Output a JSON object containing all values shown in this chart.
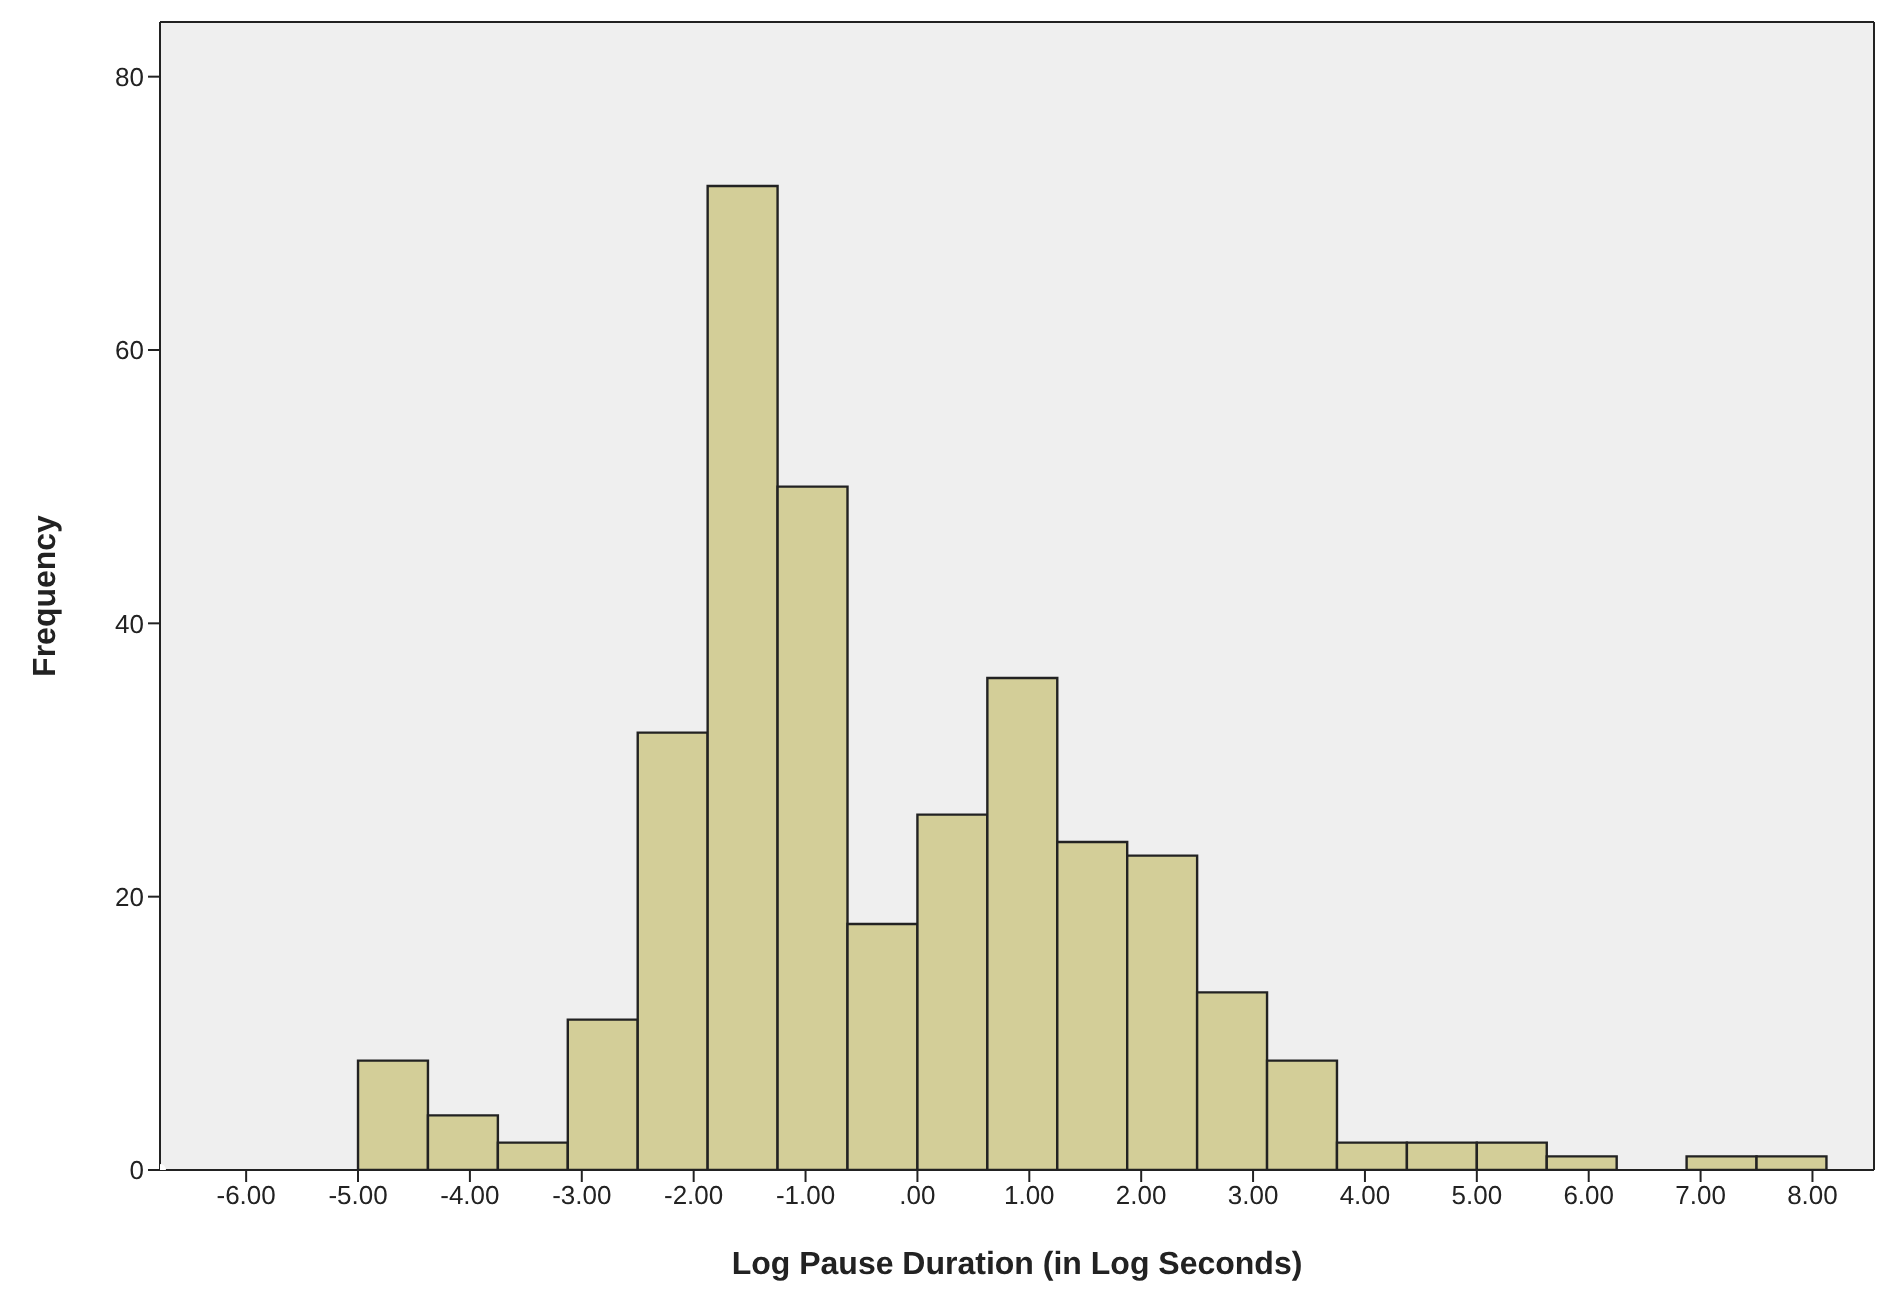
{
  "chart_data": {
    "type": "histogram",
    "xlabel": "Log Pause Duration (in Log Seconds)",
    "ylabel": "Frequency",
    "bins": [
      -5,
      -4.375,
      -3.75,
      -3.125,
      -2.5,
      -1.875,
      -1.25,
      -0.625,
      0,
      0.625,
      1.25,
      1.875,
      2.5,
      3.125,
      3.75,
      4.375,
      5,
      5.625,
      6.25,
      6.875,
      7.5,
      8.125
    ],
    "values": [
      8,
      4,
      2,
      11,
      32,
      72,
      50,
      18,
      26,
      36,
      24,
      23,
      13,
      8,
      2,
      2,
      2,
      1,
      0,
      1,
      1
    ],
    "color": "#d3ce98",
    "xlim": [
      -6.77,
      8.55
    ],
    "xticks": [
      {
        "value": -6,
        "label": "-6.00"
      },
      {
        "value": -5,
        "label": "-5.00"
      },
      {
        "value": -4,
        "label": "-4.00"
      },
      {
        "value": -3,
        "label": "-3.00"
      },
      {
        "value": -2,
        "label": "-2.00"
      },
      {
        "value": -1,
        "label": "-1.00"
      },
      {
        "value": 0,
        "label": ".00"
      },
      {
        "value": 1,
        "label": "1.00"
      },
      {
        "value": 2,
        "label": "2.00"
      },
      {
        "value": 3,
        "label": "3.00"
      },
      {
        "value": 4,
        "label": "4.00"
      },
      {
        "value": 5,
        "label": "5.00"
      },
      {
        "value": 6,
        "label": "6.00"
      },
      {
        "value": 7,
        "label": "7.00"
      },
      {
        "value": 8,
        "label": "8.00"
      }
    ],
    "ylim": [
      0,
      84
    ],
    "yticks": [
      0,
      20,
      40,
      60,
      80
    ]
  }
}
